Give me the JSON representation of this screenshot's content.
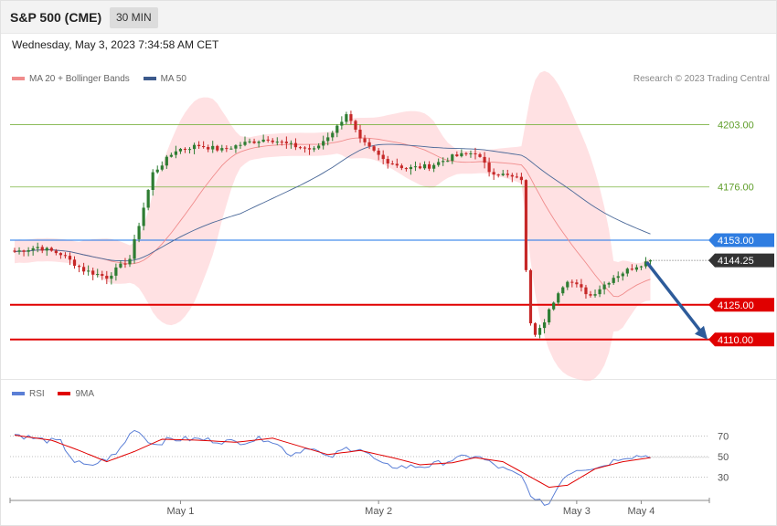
{
  "header": {
    "title": "S&P 500 (CME)",
    "timeframe": "30 MIN",
    "datetime": "Wednesday, May 3, 2023 7:34:58 AM CET"
  },
  "legend": {
    "ma20_label": "MA 20 + Bollinger Bands",
    "ma50_label": "MA 50",
    "copyright": "Research © 2023 Trading Central"
  },
  "rsi_legend": {
    "rsi_label": "RSI",
    "ma_label": "9MA"
  },
  "colors": {
    "bull": "#2e7d32",
    "bear": "#c62828",
    "bollinger": "#ffc9cc",
    "ma20": "#f08c8c",
    "ma50": "#4a6898",
    "resistance": "#7cb342",
    "pivot": "#1a73e8",
    "support": "#e00000",
    "current": "#333333",
    "arrow": "#2d5b9a",
    "rsi": "#5b7fd6",
    "rsi_ma": "#e00000"
  },
  "chart_data": {
    "type": "candlestick",
    "instrument": "S&P 500 (CME)",
    "interval": "30 MIN",
    "price_range": [
      4102,
      4217
    ],
    "date_labels": [
      {
        "label": "May 1",
        "index": 36
      },
      {
        "label": "May 2",
        "index": 79
      },
      {
        "label": "May 3",
        "index": 122
      },
      {
        "label": "May 4",
        "index": 136
      }
    ],
    "levels": [
      {
        "value": 4203.0,
        "label": "4203.00",
        "kind": "resistance"
      },
      {
        "value": 4176.0,
        "label": "4176.00",
        "kind": "resistance"
      },
      {
        "value": 4153.0,
        "label": "4153.00",
        "kind": "pivot"
      },
      {
        "value": 4144.25,
        "label": "4144.25",
        "kind": "current"
      },
      {
        "value": 4125.0,
        "label": "4125.00",
        "kind": "support"
      },
      {
        "value": 4110.0,
        "label": "4110.00",
        "kind": "support"
      }
    ],
    "forecast_arrow": {
      "from_index": 137,
      "from_value": 4144.25,
      "to_index": 150,
      "to_value": 4110.0
    },
    "key_points": [
      [
        0,
        4148
      ],
      [
        5,
        4150
      ],
      [
        10,
        4147
      ],
      [
        15,
        4140
      ],
      [
        20,
        4137
      ],
      [
        25,
        4145
      ],
      [
        30,
        4182
      ],
      [
        35,
        4192
      ],
      [
        40,
        4194
      ],
      [
        45,
        4192
      ],
      [
        50,
        4195
      ],
      [
        55,
        4197
      ],
      [
        60,
        4194
      ],
      [
        65,
        4192
      ],
      [
        70,
        4202
      ],
      [
        72,
        4208
      ],
      [
        75,
        4196
      ],
      [
        80,
        4188
      ],
      [
        85,
        4184
      ],
      [
        90,
        4185
      ],
      [
        95,
        4189
      ],
      [
        100,
        4191
      ],
      [
        103,
        4183
      ],
      [
        110,
        4179
      ],
      [
        111,
        4140
      ],
      [
        112,
        4117
      ],
      [
        113,
        4112
      ],
      [
        115,
        4118
      ],
      [
        118,
        4131
      ],
      [
        120,
        4136
      ],
      [
        125,
        4129
      ],
      [
        130,
        4137
      ],
      [
        135,
        4142
      ],
      [
        138,
        4144.25
      ]
    ],
    "rsi": {
      "levels": [
        70,
        50,
        30
      ],
      "range": [
        0,
        100
      ],
      "rsi_points": [
        [
          0,
          72
        ],
        [
          5,
          67
        ],
        [
          10,
          64
        ],
        [
          13,
          45
        ],
        [
          16,
          40
        ],
        [
          22,
          52
        ],
        [
          26,
          78
        ],
        [
          30,
          62
        ],
        [
          34,
          67
        ],
        [
          40,
          67
        ],
        [
          48,
          64
        ],
        [
          55,
          68
        ],
        [
          60,
          52
        ],
        [
          64,
          60
        ],
        [
          68,
          48
        ],
        [
          72,
          58
        ],
        [
          75,
          58
        ],
        [
          80,
          41
        ],
        [
          85,
          40
        ],
        [
          90,
          41
        ],
        [
          95,
          47
        ],
        [
          100,
          51
        ],
        [
          105,
          40
        ],
        [
          110,
          30
        ],
        [
          113,
          6
        ],
        [
          116,
          4
        ],
        [
          119,
          30
        ],
        [
          122,
          38
        ],
        [
          127,
          40
        ],
        [
          132,
          50
        ],
        [
          138,
          51
        ]
      ],
      "ma_points": [
        [
          0,
          71
        ],
        [
          8,
          66
        ],
        [
          14,
          56
        ],
        [
          20,
          45
        ],
        [
          26,
          55
        ],
        [
          32,
          67
        ],
        [
          40,
          66
        ],
        [
          48,
          64
        ],
        [
          56,
          68
        ],
        [
          62,
          60
        ],
        [
          68,
          52
        ],
        [
          75,
          56
        ],
        [
          82,
          49
        ],
        [
          88,
          42
        ],
        [
          95,
          44
        ],
        [
          100,
          49
        ],
        [
          106,
          45
        ],
        [
          112,
          30
        ],
        [
          116,
          20
        ],
        [
          120,
          22
        ],
        [
          126,
          38
        ],
        [
          132,
          45
        ],
        [
          138,
          49
        ]
      ]
    }
  }
}
